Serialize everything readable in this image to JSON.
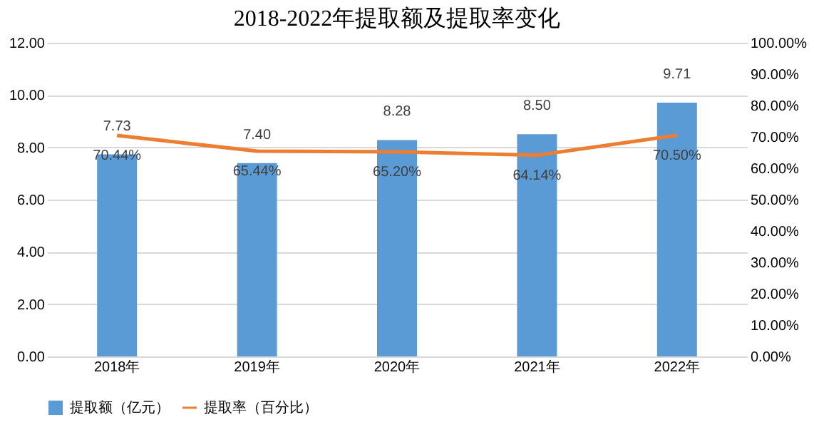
{
  "chart_data": {
    "type": "bar",
    "title": "2018-2022年提取额及提取率变化",
    "categories": [
      "2018年",
      "2019年",
      "2020年",
      "2021年",
      "2022年"
    ],
    "series": [
      {
        "name": "提取额（亿元）",
        "color": "#5b9bd5",
        "values": [
          7.73,
          7.4,
          8.28,
          8.5,
          9.71
        ],
        "value_labels": [
          "7.73",
          "7.40",
          "8.28",
          "8.50",
          "9.71"
        ]
      },
      {
        "name": "提取率（百分比）",
        "type": "line",
        "axis": "y2",
        "color": "#ed7d31",
        "values": [
          70.44,
          65.44,
          65.2,
          64.14,
          70.5
        ],
        "value_labels": [
          "70.44%",
          "65.44%",
          "65.20%",
          "64.14%",
          "70.50%"
        ]
      }
    ],
    "ylim": [
      0,
      12
    ],
    "yticks": [
      {
        "value": 0,
        "label": "0.00"
      },
      {
        "value": 2,
        "label": "2.00"
      },
      {
        "value": 4,
        "label": "4.00"
      },
      {
        "value": 6,
        "label": "6.00"
      },
      {
        "value": 8,
        "label": "8.00"
      },
      {
        "value": 10,
        "label": "10.00"
      },
      {
        "value": 12,
        "label": "12.00"
      }
    ],
    "y2lim": [
      0,
      100
    ],
    "y2ticks": [
      {
        "value": 0,
        "label": "0.00%"
      },
      {
        "value": 10,
        "label": "10.00%"
      },
      {
        "value": 20,
        "label": "20.00%"
      },
      {
        "value": 30,
        "label": "30.00%"
      },
      {
        "value": 40,
        "label": "40.00%"
      },
      {
        "value": 50,
        "label": "50.00%"
      },
      {
        "value": 60,
        "label": "60.00%"
      },
      {
        "value": 70,
        "label": "70.00%"
      },
      {
        "value": 80,
        "label": "80.00%"
      },
      {
        "value": 90,
        "label": "90.00%"
      },
      {
        "value": 100,
        "label": "100.00%"
      }
    ],
    "grid": "y",
    "legend": "bottom",
    "marker": "none",
    "line_style": "solid"
  }
}
